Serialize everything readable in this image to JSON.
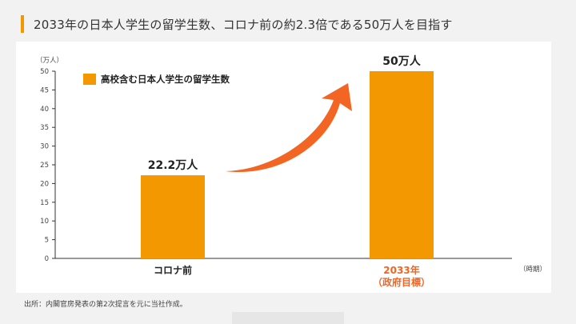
{
  "header": {
    "title": "2033年の日本人学生の留学生数、コロナ前の約2.3倍である50万人を目指す",
    "accent_color": "#f39800"
  },
  "source": "出所：内閣官房発表の第2次提言を元に当社作成。",
  "chart_data": {
    "type": "bar",
    "categories": [
      "コロナ前",
      "2033年\n（政府目標）"
    ],
    "series": [
      {
        "name": "高校含む日本人学生の留学生数",
        "values": [
          22.2,
          50
        ]
      }
    ],
    "data_labels": [
      "22.2万人",
      "50万人"
    ],
    "title": "",
    "ylabel": "（万人）",
    "xlabel": "（時期）",
    "ylim": [
      0,
      50
    ],
    "yticks": [
      0,
      5,
      10,
      15,
      20,
      25,
      30,
      35,
      40,
      45,
      50
    ],
    "grid": false,
    "legend": "top-left",
    "colors": {
      "bar": "#f39800",
      "arrow": "#f26522",
      "highlight_label": "#f26522",
      "axis": "#333333"
    },
    "annotation": {
      "type": "arrow",
      "from_category": 0,
      "to_category": 1,
      "icon": "curved-up-arrow-icon"
    }
  }
}
